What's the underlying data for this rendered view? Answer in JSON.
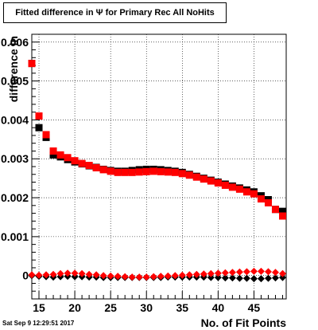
{
  "title": "Fitted difference in Ψ  for Primary Rec All NoHits",
  "footer": {
    "timestamp": "Sat Sep  9 12:29:51 2017"
  },
  "chart_data": {
    "type": "scatter",
    "title": "Fitted difference in Ψ  for Primary Rec All NoHits",
    "xlabel": "No. of Fit Points",
    "ylabel": "difference in",
    "xlim": [
      14,
      49.5
    ],
    "ylim": [
      -0.0006,
      0.0062
    ],
    "x_ticks": [
      15,
      20,
      25,
      30,
      35,
      40,
      45
    ],
    "x_tick_labels": [
      "15",
      "20",
      "25",
      "30",
      "35",
      "40",
      "45"
    ],
    "y_ticks": [
      0,
      0.001,
      0.002,
      0.003,
      0.004,
      0.005,
      0.006
    ],
    "y_tick_labels": [
      "0",
      "0.001",
      "0.002",
      "0.003",
      "0.004",
      "0.005",
      "0.006"
    ],
    "grid": true,
    "series": [
      {
        "marker": "square",
        "color": "#000000",
        "x": [
          14,
          15,
          16,
          17,
          18,
          19,
          20,
          21,
          22,
          23,
          24,
          25,
          26,
          27,
          28,
          29,
          30,
          31,
          32,
          33,
          34,
          35,
          36,
          37,
          38,
          39,
          40,
          41,
          42,
          43,
          44,
          45,
          46,
          47,
          48,
          49
        ],
        "y": [
          0.00545,
          0.0038,
          0.00355,
          0.0031,
          0.00305,
          0.00298,
          0.00292,
          0.00287,
          0.00282,
          0.00278,
          0.00273,
          0.0027,
          0.00268,
          0.00268,
          0.0027,
          0.00272,
          0.00273,
          0.00273,
          0.00272,
          0.0027,
          0.00268,
          0.00265,
          0.0026,
          0.00255,
          0.0025,
          0.00245,
          0.0024,
          0.00235,
          0.0023,
          0.00225,
          0.0022,
          0.00215,
          0.00205,
          0.00195,
          0.0017,
          0.00165
        ]
      },
      {
        "marker": "square",
        "color": "#ff0000",
        "x": [
          14,
          15,
          16,
          17,
          18,
          19,
          20,
          21,
          22,
          23,
          24,
          25,
          26,
          27,
          28,
          29,
          30,
          31,
          32,
          33,
          34,
          35,
          36,
          37,
          38,
          39,
          40,
          41,
          42,
          43,
          44,
          45,
          46,
          47,
          48,
          49
        ],
        "y": [
          0.00545,
          0.0041,
          0.00362,
          0.0032,
          0.0031,
          0.00303,
          0.00295,
          0.00288,
          0.00283,
          0.00277,
          0.00272,
          0.00268,
          0.00265,
          0.00265,
          0.00265,
          0.00266,
          0.00267,
          0.00268,
          0.00267,
          0.00266,
          0.00265,
          0.00262,
          0.00258,
          0.00253,
          0.00248,
          0.00243,
          0.00238,
          0.00232,
          0.00227,
          0.00222,
          0.00215,
          0.0021,
          0.00197,
          0.00187,
          0.0017,
          0.00153
        ]
      },
      {
        "marker": "diamond",
        "color": "#000000",
        "x": [
          14,
          15,
          16,
          17,
          18,
          19,
          20,
          21,
          22,
          23,
          24,
          25,
          26,
          27,
          28,
          29,
          30,
          31,
          32,
          33,
          34,
          35,
          36,
          37,
          38,
          39,
          40,
          41,
          42,
          43,
          44,
          45,
          46,
          47,
          48,
          49
        ],
        "y": [
          0,
          -2e-05,
          -3e-05,
          -4e-05,
          -3e-05,
          -2e-05,
          -3e-05,
          -3e-05,
          -4e-05,
          -4e-05,
          -5e-05,
          -5e-05,
          -5e-05,
          -5e-05,
          -5e-05,
          -5e-05,
          -5e-05,
          -5e-05,
          -5e-05,
          -4e-05,
          -4e-05,
          -4e-05,
          -4e-05,
          -4e-05,
          -4e-05,
          -5e-05,
          -5e-05,
          -6e-05,
          -6e-05,
          -7e-05,
          -7e-05,
          -8e-05,
          -8e-05,
          -7e-05,
          -6e-05,
          -5e-05
        ]
      },
      {
        "marker": "diamond",
        "color": "#ff0000",
        "x": [
          14,
          15,
          16,
          17,
          18,
          19,
          20,
          21,
          22,
          23,
          24,
          25,
          26,
          27,
          28,
          29,
          30,
          31,
          32,
          33,
          34,
          35,
          36,
          37,
          38,
          39,
          40,
          41,
          42,
          43,
          44,
          45,
          46,
          47,
          48,
          49
        ],
        "y": [
          2e-05,
          1e-05,
          2e-05,
          3e-05,
          5e-05,
          6e-05,
          6e-05,
          5e-05,
          3e-05,
          2e-05,
          0,
          -1e-05,
          -2e-05,
          -3e-05,
          -4e-05,
          -4e-05,
          -4e-05,
          -3e-05,
          -2e-05,
          -1e-05,
          0,
          1e-05,
          2e-05,
          3e-05,
          4e-05,
          5e-05,
          6e-05,
          7e-05,
          8e-05,
          9e-05,
          0.0001,
          0.00011,
          0.00011,
          0.0001,
          8e-05,
          5e-05
        ]
      }
    ]
  }
}
